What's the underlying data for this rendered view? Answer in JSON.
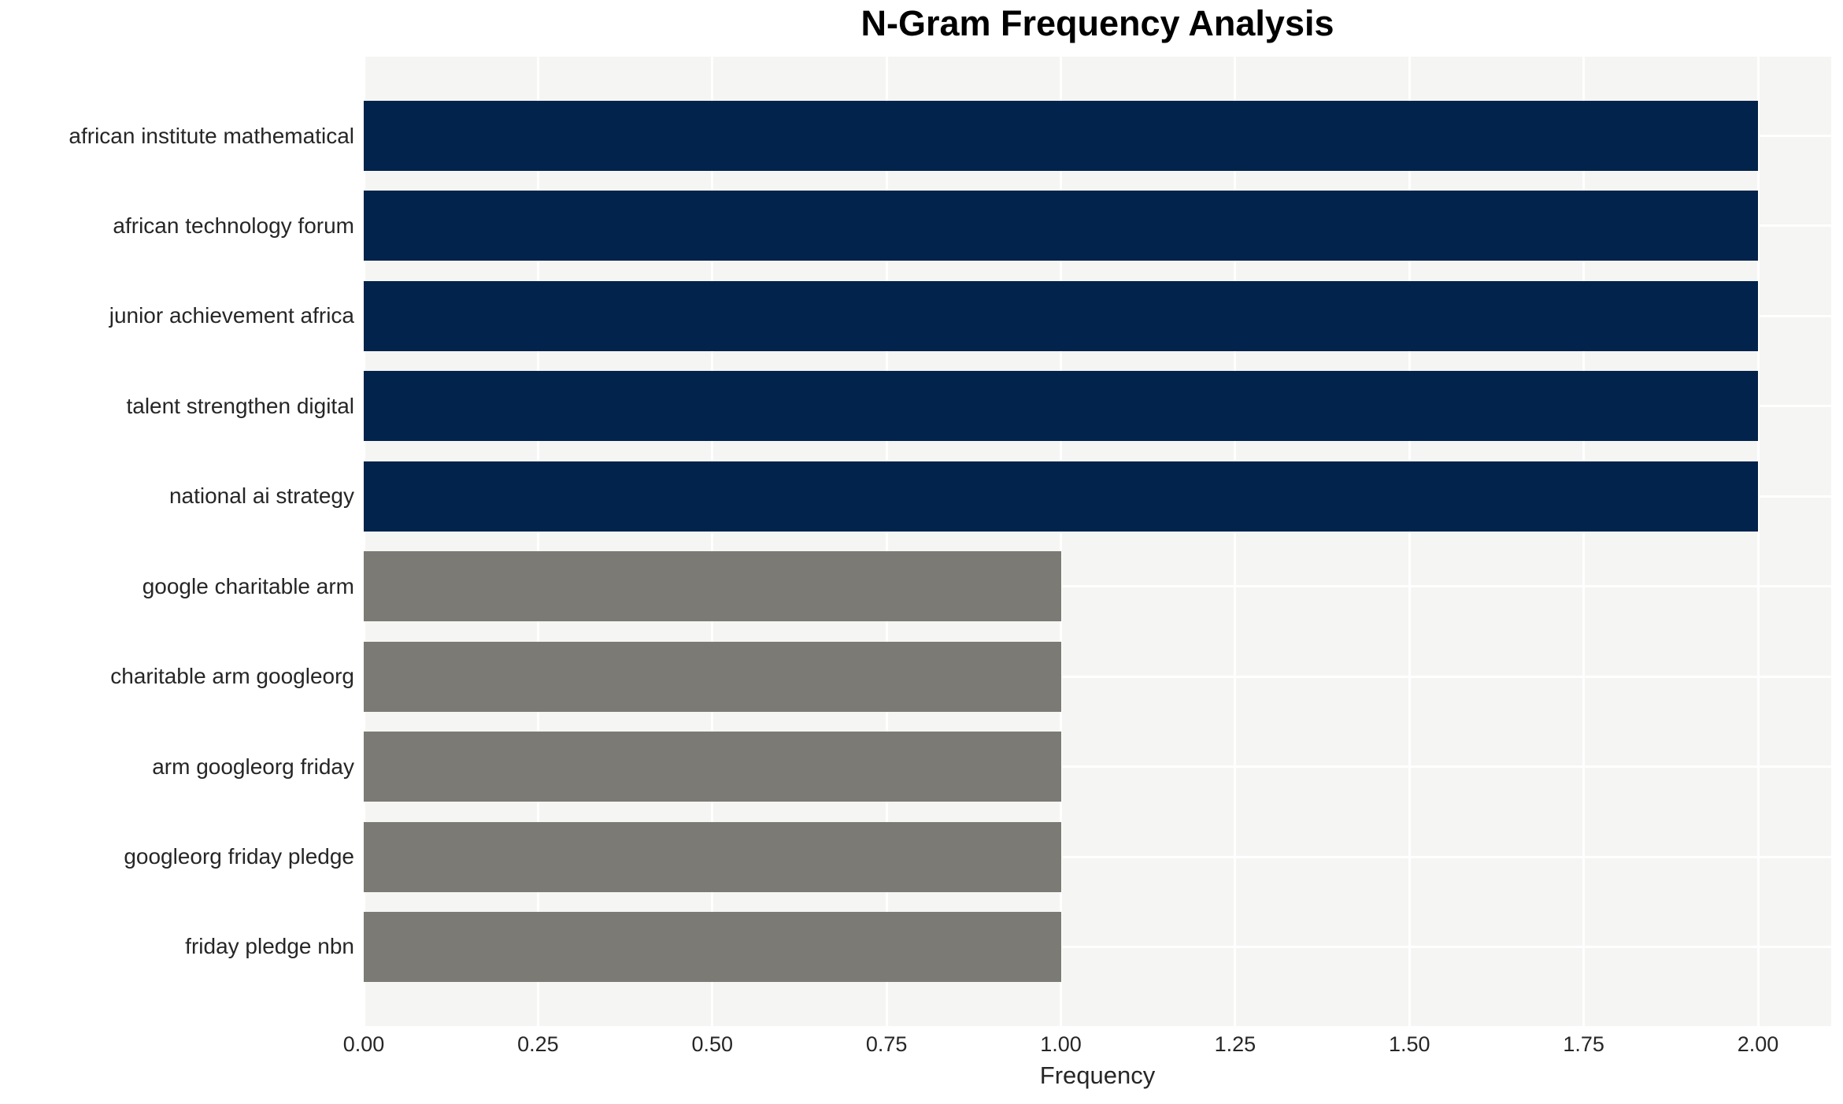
{
  "chart_data": {
    "type": "bar",
    "orientation": "horizontal",
    "title": "N-Gram Frequency Analysis",
    "xlabel": "Frequency",
    "ylabel": "",
    "categories": [
      "african institute mathematical",
      "african technology forum",
      "junior achievement africa",
      "talent strengthen digital",
      "national ai strategy",
      "google charitable arm",
      "charitable arm googleorg",
      "arm googleorg friday",
      "googleorg friday pledge",
      "friday pledge nbn"
    ],
    "values": [
      2,
      2,
      2,
      2,
      2,
      1,
      1,
      1,
      1,
      1
    ],
    "bar_colors": [
      "#02234c",
      "#02234c",
      "#02234c",
      "#02234c",
      "#02234c",
      "#7b7a74",
      "#7b7a74",
      "#7b7a74",
      "#7b7a74",
      "#7b7a74"
    ],
    "xlim": [
      0,
      2.105
    ],
    "xtick_values": [
      0,
      0.25,
      0.5,
      0.75,
      1.0,
      1.25,
      1.5,
      1.75,
      2.0
    ],
    "xtick_labels": [
      "0.00",
      "0.25",
      "0.50",
      "0.75",
      "1.00",
      "1.25",
      "1.50",
      "1.75",
      "2.00"
    ],
    "grid": true,
    "legend": "none",
    "colors": {
      "high_value_bar": "#02234c",
      "low_value_bar": "#7b7a74",
      "plot_background": "#f5f5f3",
      "gridline": "#ffffff",
      "text": "#262626",
      "title_text": "#000000"
    }
  }
}
